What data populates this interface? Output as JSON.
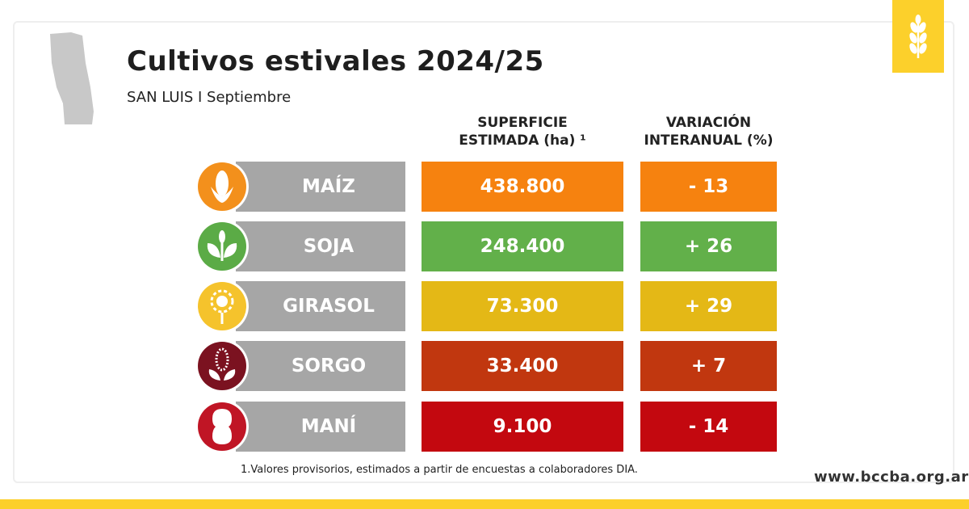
{
  "header": {
    "title": "Cultivos estivales 2024/25",
    "subtitle": "SAN LUIS I Septiembre"
  },
  "table": {
    "columns": [
      [
        "SUPERFICIE",
        "ESTIMADA (ha) ¹"
      ],
      [
        "VARIACIÓN",
        "INTERANUAL (%)"
      ]
    ],
    "rows": [
      {
        "name": "MAÍZ",
        "area": "438.800",
        "variation": "- 13",
        "color": "#f6820f",
        "icon_color": "#f3901c"
      },
      {
        "name": "SOJA",
        "area": "248.400",
        "variation": "+ 26",
        "color": "#62b04a",
        "icon_color": "#5bab46"
      },
      {
        "name": "GIRASOL",
        "area": "73.300",
        "variation": "+ 29",
        "color": "#e4b816",
        "icon_color": "#f5c32c"
      },
      {
        "name": "SORGO",
        "area": "33.400",
        "variation": "+ 7",
        "color": "#c1370f",
        "icon_color": "#7b1220"
      },
      {
        "name": "MANÍ",
        "area": "9.100",
        "variation": "- 14",
        "color": "#c3080f",
        "icon_color": "#c01525"
      }
    ]
  },
  "footnote": "1.Valores provisorios, estimados a partir de encuestas a colaboradores DIA.",
  "website": "www.bccba.org.ar"
}
